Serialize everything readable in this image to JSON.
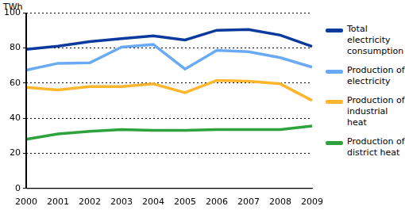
{
  "chart_data": {
    "type": "line",
    "y_label": "TWh",
    "categories": [
      "2000",
      "2001",
      "2002",
      "2003",
      "2004",
      "2005",
      "2006",
      "2007",
      "2008",
      "2009"
    ],
    "series": [
      {
        "name": "Total electricity consumption",
        "color": "#0a3a9e",
        "values": [
          79.2,
          81,
          83.5,
          85.2,
          86.8,
          84.5,
          90,
          90.4,
          87.2,
          80.8
        ]
      },
      {
        "name": "Production of electricity",
        "color": "#6aaaf5",
        "values": [
          67.3,
          71.2,
          71.5,
          80.4,
          81.9,
          67.9,
          78.6,
          77.8,
          74.4,
          69
        ]
      },
      {
        "name": "Production of industrial heat",
        "color": "#ffb52e",
        "values": [
          57.5,
          56,
          58,
          58,
          59.5,
          54.5,
          61.5,
          61,
          59.5,
          50
        ]
      },
      {
        "name": "Production of district heat",
        "color": "#2ea23c",
        "values": [
          28,
          31,
          32.5,
          33.5,
          33,
          33,
          33.5,
          33.5,
          33.5,
          35.5
        ]
      }
    ],
    "ylim": [
      0,
      100
    ],
    "yticks": [
      0,
      20,
      40,
      60,
      80,
      100
    ],
    "grid": true,
    "legend": "right"
  }
}
